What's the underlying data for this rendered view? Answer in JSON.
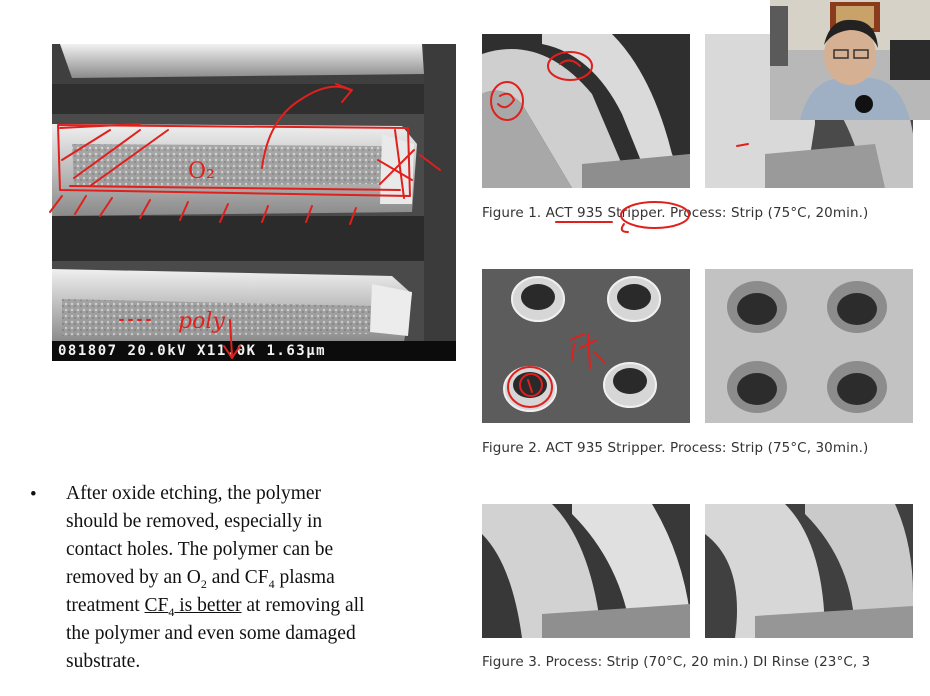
{
  "sem_scale_bar": "081807 20.0kV X11.0K 1.63μm",
  "captions": {
    "figure1": "Figure 1. ACT 935 Stripper. Process: Strip (75°C, 20min.)",
    "figure2": "Figure 2. ACT 935 Stripper. Process: Strip (75°C, 30min.)",
    "figure3": "Figure 3. Process: Strip (70°C, 20 min.) DI Rinse (23°C, 3"
  },
  "bullet": {
    "symbol": "•",
    "line1": "After oxide etching, the polymer",
    "line2": "should be removed, especially in",
    "line3": "contact holes. The polymer can be",
    "line4_a": "removed by an O",
    "line4_sub1": "2",
    "line4_b": " and CF",
    "line4_sub2": "4",
    "line4_c": " plasma",
    "line5_a": "treatment ",
    "line5_u1": "CF",
    "line5_usub": "4",
    "line5_u2": " is better",
    "line5_b": " at removing all",
    "line6": "the polymer and even some damaged",
    "line7": "substrate."
  },
  "annotations": {
    "o2": "O₂",
    "poly": "poly",
    "residue": "殘"
  },
  "colors": {
    "ink": "#e0201c",
    "sem_dark": "#3a3a3a",
    "sem_light": "#d8d8d8"
  }
}
